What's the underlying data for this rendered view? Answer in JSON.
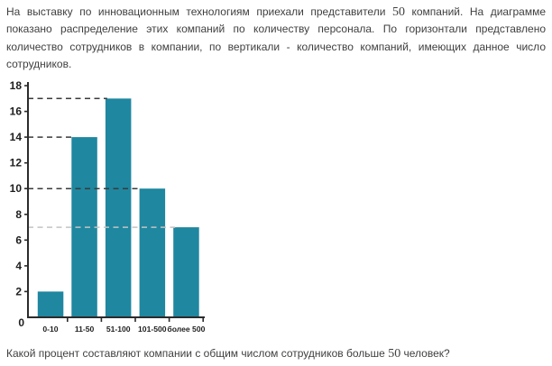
{
  "problem": {
    "text_before_number": "На выставку по инновационным технологиям приехали представители ",
    "companies_total": "50",
    "text_after_number": " компаний. На диаграмме показано распределение этих компаний по количеству персонала. По горизонтали представлено количество сотрудников в компании, по вертикали - количество компаний, имеющих данное число сотрудников."
  },
  "question": {
    "text_before_number": "Какой процент составляют компании с общим числом сотрудников больше ",
    "number": "50",
    "text_after_number": " человек?"
  },
  "chart_data": {
    "type": "bar",
    "categories": [
      "0-10",
      "11-50",
      "51-100",
      "101-500",
      "более 500"
    ],
    "values": [
      2,
      14,
      17,
      10,
      7
    ],
    "title": "",
    "xlabel": "количество сотрудников в компании",
    "ylabel": "количество компаний",
    "ylim": [
      0,
      18
    ],
    "y_ticks": [
      0,
      2,
      4,
      6,
      8,
      10,
      12,
      14,
      16,
      18
    ],
    "grid": false,
    "legend": false,
    "bar_color": "#1f87a0",
    "axis_color": "#2b2b2b",
    "origin_label": "0",
    "guide_lines": [
      {
        "value": 14,
        "bar_index": 1,
        "color": "#3a3a3a"
      },
      {
        "value": 17,
        "bar_index": 2,
        "color": "#3a3a3a"
      },
      {
        "value": 10,
        "bar_index": 3,
        "color": "#3a3a3a"
      },
      {
        "value": 7,
        "bar_index": 4,
        "color": "#c4c4c4"
      }
    ]
  },
  "colors": {
    "text": "#3f3f3f",
    "bar": "#1f87a0",
    "guide_dark": "#3a3a3a",
    "guide_light": "#c4c4c4"
  }
}
